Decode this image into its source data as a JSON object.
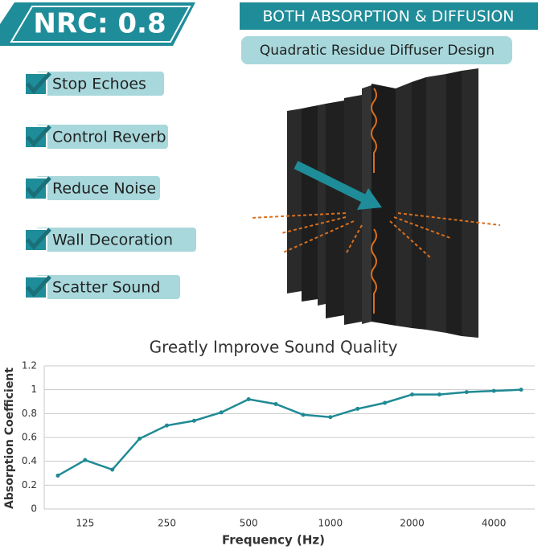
{
  "badge": {
    "label": "NRC: 0.8"
  },
  "banner": {
    "title": "BOTH ABSORPTION & DIFFUSION",
    "subtitle": "Quadratic Residue Diffuser Design"
  },
  "features": [
    "Stop Echoes",
    "Control Reverb",
    "Reduce Noise",
    "Wall Decoration",
    "Scatter Sound"
  ],
  "chart_data": {
    "type": "line",
    "title": "Greatly Improve Sound Quality",
    "x_label": "Frequency (Hz)",
    "y_label": "Absorption Coefficient",
    "categories": [
      null,
      "125",
      null,
      null,
      "250",
      null,
      null,
      "500",
      null,
      null,
      "1000",
      null,
      null,
      "2000",
      null,
      null,
      "4000",
      null
    ],
    "series": [
      {
        "color": "#1f8a94",
        "values": [
          0.28,
          0.41,
          0.33,
          0.59,
          0.7,
          0.74,
          0.81,
          0.92,
          0.88,
          0.79,
          0.77,
          0.84,
          0.89,
          0.96,
          0.96,
          0.98,
          0.99,
          1.0
        ]
      }
    ],
    "ylim": [
      0,
      1.2
    ],
    "yticks": [
      0,
      0.2,
      0.4,
      0.6,
      0.8,
      1,
      1.2
    ],
    "grid": true
  }
}
